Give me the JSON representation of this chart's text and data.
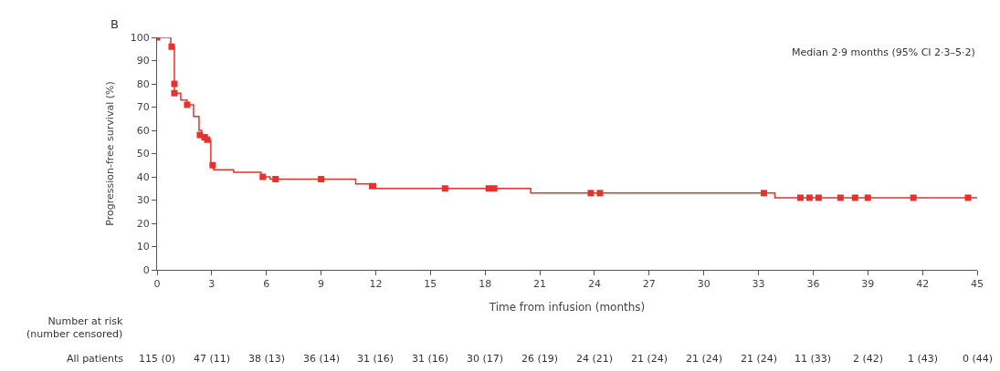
{
  "chart_data": {
    "type": "step",
    "xlabel": "Time from infusion (months)",
    "ylabel": "Progression-free survival (%)",
    "series": [
      {
        "color": "#e8312a",
        "x": [
          0,
          0.75,
          0.95,
          1.3,
          1.65,
          2.0,
          2.3,
          2.45,
          2.75,
          2.95,
          3.1,
          4.2,
          5.7,
          6.2,
          10.9,
          12.0,
          20.5,
          33.9,
          45
        ],
        "values": [
          100,
          96,
          76,
          73,
          71,
          66,
          60,
          58,
          56,
          45,
          43,
          42,
          40,
          39,
          37,
          35,
          33,
          31,
          31
        ]
      },
      {
        "type": "scatter",
        "color": "#e8312a",
        "marker": "square",
        "x": [
          0,
          0.8,
          0.95,
          0.95,
          1.65,
          2.35,
          2.6,
          2.75,
          3.05,
          5.8,
          6.5,
          9.0,
          11.8,
          15.8,
          18.2,
          18.5,
          23.8,
          24.3,
          33.3,
          35.3,
          35.8,
          36.3,
          37.5,
          38.3,
          39.0,
          41.5,
          44.5
        ],
        "values": [
          100,
          96,
          80,
          76,
          71,
          58,
          57,
          56,
          45,
          40,
          39,
          39,
          36,
          35,
          35,
          35,
          33,
          33,
          33,
          31,
          31,
          31,
          31,
          31,
          31,
          31,
          31
        ]
      }
    ],
    "xlim": [
      0,
      45
    ],
    "xticks": [
      0,
      3,
      6,
      9,
      12,
      15,
      18,
      21,
      24,
      27,
      30,
      33,
      36,
      39,
      42,
      45
    ],
    "ylim": [
      0,
      100
    ],
    "yticks": [
      0,
      10,
      20,
      30,
      40,
      50,
      60,
      70,
      80,
      90,
      100
    ],
    "annotations": [
      "B",
      "Median 2·9 months (95% CI 2·3–5·2)",
      "Number at risk\n(number censored)",
      "All patients",
      "115 (0)",
      "47 (11)",
      "38 (13)",
      "36 (14)",
      "31 (16)",
      "31 (16)",
      "30 (17)",
      "26 (19)",
      "24 (21)",
      "21 (24)",
      "21 (24)",
      "21 (24)",
      "11 (33)",
      "2 (42)",
      "1 (43)",
      "0 (44)"
    ]
  }
}
